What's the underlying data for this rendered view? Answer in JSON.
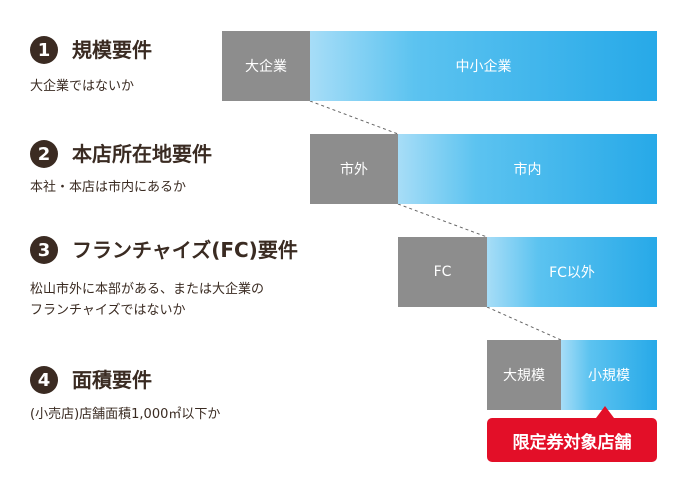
{
  "requirements": [
    {
      "number": "1",
      "title": "規模要件",
      "desc": [
        "大企業ではないか"
      ]
    },
    {
      "number": "2",
      "title": "本店所在地要件",
      "desc": [
        "本社・本店は市内にあるか"
      ]
    },
    {
      "number": "3",
      "title": "フランチャイズ(FC)要件",
      "desc": [
        "松山市外に本部がある、または大企業の",
        "フランチャイズではないか"
      ]
    },
    {
      "number": "4",
      "title": "面積要件",
      "desc": [
        "(小売店)店舗面積1,000㎡以下か"
      ]
    }
  ],
  "bars": [
    {
      "excluded": "大企業",
      "eligible": "中小企業"
    },
    {
      "excluded": "市外",
      "eligible": "市内"
    },
    {
      "excluded": "FC",
      "eligible": "FC以外"
    },
    {
      "excluded": "大規模",
      "eligible": "小規模"
    }
  ],
  "badge": "限定券対象店舗",
  "colors": {
    "excluded": "#8d8d8d",
    "eligible": "#27a9e8",
    "badge": "#e30f28",
    "number_circle": "#3b2b22"
  }
}
